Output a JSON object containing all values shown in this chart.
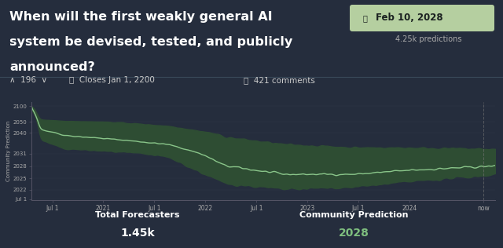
{
  "title_line1": "When will the first weakly general AI",
  "title_line2": "system be devised, tested, and publicly",
  "title_line3": "announced?",
  "date_badge": "Feb 10, 2028",
  "predictions_label": "4.25k predictions",
  "upvotes": "196",
  "closes": "Closes Jan 1, 2200",
  "comments": "421 comments",
  "total_forecasters_label": "Total Forecasters",
  "total_forecasters_value": "1.45k",
  "community_prediction_label": "Community Prediction",
  "community_prediction_value": "2028",
  "bg_color": "#252d3d",
  "chart_bg": "#252d3d",
  "line_color": "#8fcc8f",
  "band_color": "#2e4d33",
  "axis_label_color": "#aaaaaa",
  "text_color": "#ffffff",
  "green_value_color": "#7fbf7f",
  "badge_bg": "#b5cfa0",
  "badge_text_color": "#1a2020",
  "separator_color": "#3a4a5a",
  "y_tick_labels": [
    "Jul 1",
    "2022",
    "2025",
    "2028",
    "2031",
    "2040",
    "2050",
    "2100"
  ],
  "y_tick_values": [
    0.0,
    0.09,
    0.2,
    0.32,
    0.44,
    0.64,
    0.75,
    0.9
  ],
  "x_tick_labels": [
    "Jul 1",
    "2021",
    "Jul 1",
    "2022",
    "Jul 1",
    "2023",
    "Jul 1",
    "2024",
    "now"
  ],
  "x_tick_positions": [
    0.045,
    0.155,
    0.265,
    0.375,
    0.485,
    0.595,
    0.705,
    0.815,
    0.975
  ]
}
